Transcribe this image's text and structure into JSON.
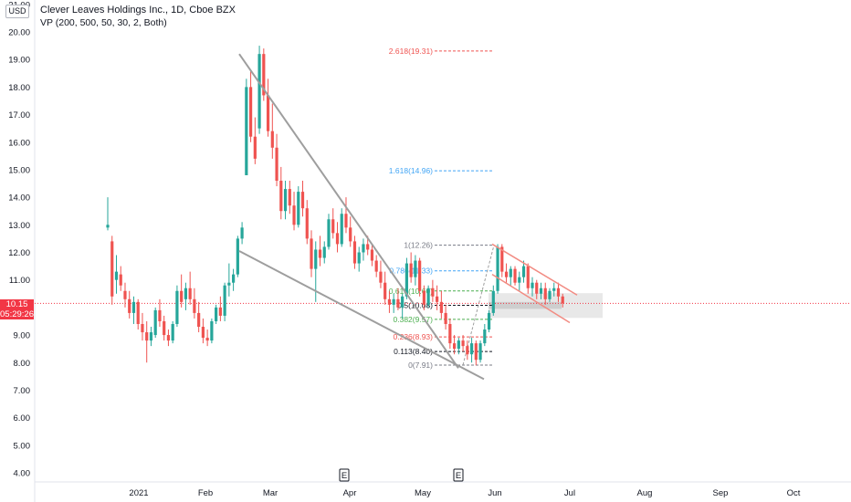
{
  "header": {
    "currency": "USD",
    "title": "Clever Leaves Holdings Inc., 1D, Cboe BZX",
    "indicator": "VP (200, 500, 50, 30, 2, Both)"
  },
  "price_badge": {
    "price": "10.15",
    "countdown": "05:29:26"
  },
  "colors": {
    "up": "#26a69a",
    "down": "#ef5350",
    "trendline": "#9e9e9e",
    "channel": "#f28b82",
    "fib_red": "#ef5350",
    "fib_blue": "#42a5f5",
    "fib_green": "#4caf50",
    "fib_gray": "#787b86",
    "fib_black": "#131722"
  },
  "chart_data": {
    "type": "candlestick",
    "y_axis": {
      "min": 3.6,
      "max": 21.0,
      "ticks": [
        "4.00",
        "5.00",
        "6.00",
        "7.00",
        "8.00",
        "9.00",
        "10.00",
        "11.00",
        "12.00",
        "13.00",
        "14.00",
        "15.00",
        "16.00",
        "17.00",
        "18.00",
        "19.00",
        "20.00",
        "21.00"
      ]
    },
    "x_axis": {
      "labels": [
        "2021",
        "Feb",
        "Mar",
        "Apr",
        "May",
        "Jun",
        "Jul",
        "Aug",
        "Sep",
        "Oct"
      ]
    },
    "last_price": 10.15,
    "candles": [
      [
        12.9,
        14.0,
        12.8,
        13.0
      ],
      [
        12.4,
        12.6,
        10.1,
        10.4
      ],
      [
        11.0,
        11.9,
        10.5,
        11.3
      ],
      [
        11.2,
        11.5,
        10.6,
        10.8
      ],
      [
        10.6,
        10.9,
        10.0,
        10.3
      ],
      [
        10.3,
        10.6,
        9.6,
        9.8
      ],
      [
        9.8,
        10.4,
        9.4,
        10.2
      ],
      [
        10.2,
        10.3,
        9.2,
        9.4
      ],
      [
        9.4,
        9.8,
        8.8,
        9.1
      ],
      [
        9.1,
        9.5,
        8.0,
        8.8
      ],
      [
        8.8,
        9.3,
        8.6,
        9.1
      ],
      [
        9.0,
        10.0,
        8.9,
        9.9
      ],
      [
        9.9,
        10.3,
        9.3,
        9.5
      ],
      [
        9.5,
        9.7,
        8.8,
        9.0
      ],
      [
        9.0,
        9.2,
        8.6,
        8.8
      ],
      [
        8.8,
        9.5,
        8.7,
        9.4
      ],
      [
        9.4,
        10.8,
        9.3,
        10.6
      ],
      [
        10.6,
        11.2,
        10.0,
        10.2
      ],
      [
        10.3,
        10.9,
        9.9,
        10.7
      ],
      [
        10.7,
        11.3,
        10.1,
        10.3
      ],
      [
        10.3,
        10.7,
        9.6,
        9.8
      ],
      [
        9.8,
        10.2,
        9.1,
        9.3
      ],
      [
        9.3,
        9.6,
        8.7,
        8.9
      ],
      [
        8.9,
        9.2,
        8.6,
        8.8
      ],
      [
        8.8,
        9.6,
        8.7,
        9.5
      ],
      [
        9.5,
        10.1,
        9.4,
        10.0
      ],
      [
        10.0,
        10.4,
        9.5,
        9.7
      ],
      [
        9.7,
        10.9,
        9.5,
        10.8
      ],
      [
        10.8,
        11.6,
        10.4,
        10.9
      ],
      [
        10.9,
        11.4,
        10.6,
        11.2
      ],
      [
        11.2,
        12.6,
        11.1,
        12.5
      ],
      [
        12.5,
        13.1,
        12.3,
        12.9
      ],
      [
        14.8,
        18.3,
        14.8,
        18.0
      ],
      [
        18.0,
        18.6,
        16.0,
        16.2
      ],
      [
        16.2,
        16.9,
        15.2,
        15.4
      ],
      [
        16.5,
        19.5,
        16.3,
        19.2
      ],
      [
        19.2,
        19.4,
        17.5,
        17.7
      ],
      [
        17.7,
        18.3,
        16.2,
        16.4
      ],
      [
        16.4,
        17.4,
        15.4,
        15.8
      ],
      [
        15.8,
        16.3,
        14.4,
        14.6
      ],
      [
        14.6,
        15.1,
        13.2,
        13.5
      ],
      [
        13.5,
        14.6,
        13.2,
        14.3
      ],
      [
        14.3,
        14.6,
        13.4,
        13.7
      ],
      [
        13.7,
        14.2,
        12.8,
        13.0
      ],
      [
        13.0,
        14.4,
        12.9,
        14.2
      ],
      [
        14.2,
        14.6,
        13.3,
        13.6
      ],
      [
        13.6,
        13.9,
        12.3,
        12.5
      ],
      [
        12.5,
        12.8,
        11.1,
        11.4
      ],
      [
        11.4,
        12.4,
        10.2,
        12.1
      ],
      [
        12.1,
        12.6,
        11.5,
        11.8
      ],
      [
        11.8,
        12.4,
        11.6,
        12.2
      ],
      [
        12.2,
        13.4,
        12.1,
        13.2
      ],
      [
        13.2,
        13.6,
        12.5,
        12.7
      ],
      [
        12.7,
        13.1,
        12.0,
        12.3
      ],
      [
        12.3,
        13.6,
        12.2,
        13.4
      ],
      [
        13.4,
        14.0,
        12.7,
        12.9
      ],
      [
        12.9,
        13.3,
        12.2,
        12.4
      ],
      [
        12.4,
        12.6,
        11.4,
        11.6
      ],
      [
        11.6,
        12.2,
        11.3,
        12.0
      ],
      [
        12.0,
        12.5,
        11.7,
        12.3
      ],
      [
        12.3,
        12.6,
        11.9,
        12.1
      ],
      [
        12.1,
        12.3,
        11.5,
        11.7
      ],
      [
        11.7,
        11.9,
        11.1,
        11.3
      ],
      [
        11.3,
        11.7,
        10.7,
        10.9
      ],
      [
        10.9,
        11.3,
        10.1,
        10.3
      ],
      [
        10.3,
        10.6,
        9.8,
        10.1
      ],
      [
        10.1,
        10.5,
        9.8,
        10.3
      ],
      [
        10.3,
        10.7,
        9.9,
        10.0
      ],
      [
        10.0,
        10.5,
        9.6,
        10.4
      ],
      [
        10.4,
        11.8,
        10.3,
        11.6
      ],
      [
        11.6,
        12.0,
        10.9,
        11.1
      ],
      [
        11.1,
        11.9,
        10.8,
        11.7
      ],
      [
        11.7,
        11.8,
        10.4,
        10.6
      ],
      [
        10.6,
        10.8,
        9.9,
        10.1
      ],
      [
        10.1,
        10.8,
        10.0,
        10.7
      ],
      [
        10.7,
        11.0,
        10.2,
        10.4
      ],
      [
        10.4,
        10.8,
        9.9,
        10.2
      ],
      [
        10.2,
        10.6,
        9.6,
        9.8
      ],
      [
        9.8,
        10.1,
        9.2,
        9.4
      ],
      [
        9.4,
        9.6,
        8.5,
        8.7
      ],
      [
        8.7,
        9.0,
        8.3,
        8.5
      ],
      [
        8.5,
        8.9,
        8.3,
        8.8
      ],
      [
        8.8,
        9.0,
        8.4,
        8.6
      ],
      [
        8.6,
        8.8,
        8.1,
        8.3
      ],
      [
        8.3,
        8.9,
        8.0,
        8.7
      ],
      [
        8.7,
        8.8,
        7.9,
        8.1
      ],
      [
        8.1,
        8.8,
        8.0,
        8.7
      ],
      [
        8.7,
        9.4,
        8.6,
        9.2
      ],
      [
        9.2,
        9.9,
        9.1,
        9.8
      ],
      [
        9.8,
        10.8,
        9.7,
        10.6
      ],
      [
        10.6,
        12.3,
        10.5,
        12.2
      ],
      [
        12.2,
        12.3,
        11.1,
        11.3
      ],
      [
        11.3,
        11.6,
        10.9,
        11.1
      ],
      [
        11.1,
        11.5,
        10.8,
        11.4
      ],
      [
        11.4,
        11.5,
        10.8,
        10.9
      ],
      [
        10.9,
        11.3,
        10.6,
        11.1
      ],
      [
        11.1,
        11.7,
        10.9,
        11.5
      ],
      [
        11.5,
        11.6,
        10.5,
        10.7
      ],
      [
        10.7,
        11.1,
        10.4,
        10.9
      ],
      [
        10.9,
        11.0,
        10.3,
        10.5
      ],
      [
        10.5,
        10.9,
        10.3,
        10.7
      ],
      [
        10.7,
        10.9,
        10.1,
        10.3
      ],
      [
        10.3,
        10.7,
        10.2,
        10.6
      ],
      [
        10.6,
        10.9,
        10.4,
        10.7
      ],
      [
        10.7,
        10.9,
        10.2,
        10.4
      ],
      [
        10.4,
        10.5,
        10.0,
        10.15
      ]
    ],
    "fibonacci": [
      {
        "label": "2.618(19.31)",
        "value": 19.31,
        "color": "#ef5350"
      },
      {
        "label": "1.618(14.96)",
        "value": 14.96,
        "color": "#42a5f5"
      },
      {
        "label": "1(12.26)",
        "value": 12.26,
        "color": "#787b86"
      },
      {
        "label": "0.786(11.33)",
        "value": 11.33,
        "color": "#42a5f5"
      },
      {
        "label": "0.618(10.60)",
        "value": 10.6,
        "color": "#4caf50"
      },
      {
        "label": "0.5(10.08)",
        "value": 10.08,
        "color": "#131722"
      },
      {
        "label": "0.382(9.57)",
        "value": 9.57,
        "color": "#4caf50"
      },
      {
        "label": "0.236(8.93)",
        "value": 8.93,
        "color": "#ef5350"
      },
      {
        "label": "0.113(8.40)",
        "value": 8.4,
        "color": "#131722"
      },
      {
        "label": "0(7.91)",
        "value": 7.91,
        "color": "#787b86"
      }
    ],
    "earnings_markers": [
      "E",
      "E"
    ]
  }
}
